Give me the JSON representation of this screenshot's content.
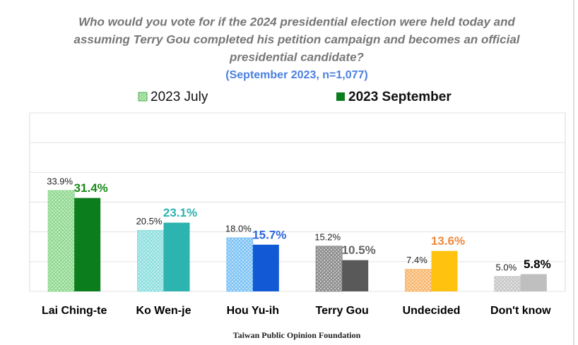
{
  "chart_data": {
    "type": "bar",
    "title": [
      "Who would you vote for if the 2024 presidential election were held today and",
      "assuming Terry Gou completed his petition campaign and becomes an official",
      "presidential candidate?"
    ],
    "subtitle": "(September 2023, n=1,077)",
    "source": "Taiwan Public Opinion Foundation",
    "categories": [
      "Lai Ching-te",
      "Ko Wen-je",
      "Hou Yu-ih",
      "Terry Gou",
      "Undecided",
      "Don't know"
    ],
    "series": [
      {
        "name": "2023 July",
        "color": "#8fd98f",
        "pattern": true,
        "colors": [
          "#8fd98f",
          "#8fdfe0",
          "#7fc4f5",
          "#8c8c8c",
          "#f8b870",
          "#c8c8c8"
        ],
        "label_colors": [
          "#222222",
          "#222222",
          "#222222",
          "#222222",
          "#222222",
          "#222222"
        ],
        "values": [
          33.9,
          20.5,
          18.0,
          15.2,
          7.4,
          5.0
        ],
        "value_labels": [
          "33.9%",
          "20.5%",
          "18.0%",
          "15.2%",
          "7.4%",
          "5.0%"
        ]
      },
      {
        "name": "2023 September",
        "color": "#0b7d1c",
        "pattern": false,
        "colors": [
          "#0b7d1c",
          "#2db3b0",
          "#1259d6",
          "#595959",
          "#ffc20e",
          "#bfbfbf"
        ],
        "label_colors": [
          "#1a8a1a",
          "#2db3b0",
          "#2a66dd",
          "#666666",
          "#f08a3c",
          "#000000"
        ],
        "values": [
          31.4,
          23.1,
          15.7,
          10.5,
          13.6,
          5.8
        ],
        "value_labels": [
          "31.4%",
          "23.1%",
          "15.7%",
          "10.5%",
          "13.6%",
          "5.8%"
        ]
      }
    ],
    "ylim": [
      0,
      60
    ],
    "yticks": [
      0,
      10,
      20,
      30,
      40,
      50,
      60
    ],
    "grid": true
  }
}
